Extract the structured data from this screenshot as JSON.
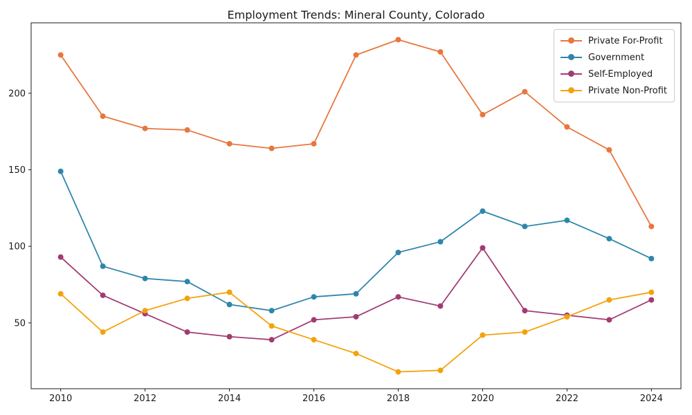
{
  "chart_data": {
    "type": "line",
    "title": "Employment Trends: Mineral County, Colorado",
    "x": [
      2010,
      2011,
      2012,
      2013,
      2014,
      2015,
      2016,
      2017,
      2018,
      2019,
      2020,
      2021,
      2022,
      2023,
      2024
    ],
    "series": [
      {
        "name": "Private For-Profit",
        "color": "#E8763D",
        "values": [
          225,
          185,
          177,
          176,
          167,
          164,
          167,
          225,
          235,
          227,
          186,
          201,
          178,
          163,
          113
        ]
      },
      {
        "name": "Government",
        "color": "#2E86AB",
        "values": [
          149,
          87,
          79,
          77,
          62,
          58,
          67,
          69,
          96,
          103,
          123,
          113,
          117,
          105,
          92
        ]
      },
      {
        "name": "Self-Employed",
        "color": "#A23B72",
        "values": [
          93,
          68,
          56,
          44,
          41,
          39,
          52,
          54,
          67,
          61,
          99,
          58,
          55,
          52,
          65
        ]
      },
      {
        "name": "Private Non-Profit",
        "color": "#F2A30C",
        "values": [
          69,
          44,
          58,
          66,
          70,
          48,
          39,
          30,
          18,
          19,
          42,
          44,
          54,
          65,
          70
        ]
      }
    ],
    "xlabel": "",
    "ylabel": "",
    "x_ticks": [
      2010,
      2012,
      2014,
      2016,
      2018,
      2020,
      2022,
      2024
    ],
    "y_ticks": [
      50,
      100,
      150,
      200
    ],
    "xlim": [
      2009.3,
      2024.7
    ],
    "ylim": [
      7,
      246
    ],
    "grid": false,
    "legend_position": "upper right",
    "axes_color": "#1a1a1a",
    "line_width": 1.8,
    "marker_radius": 4
  }
}
